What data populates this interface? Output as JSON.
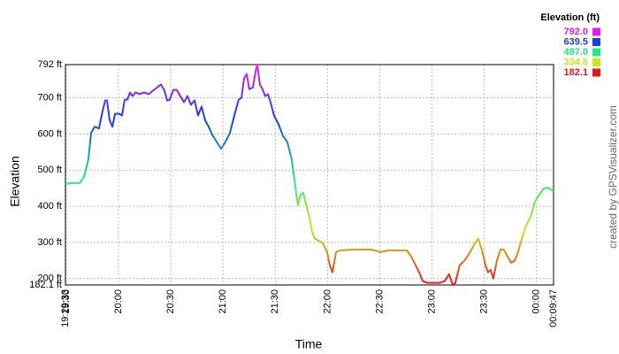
{
  "chart_data": {
    "type": "line",
    "x_label": "Time",
    "y_label": "Elevation",
    "credit": "created by GPSVisualizer.com",
    "legend_title": "Elevation (ft)",
    "color_scale": [
      {
        "value": 792.0,
        "label": "792.0",
        "color": "#e81ce8"
      },
      {
        "value": 639.5,
        "label": "639.5",
        "color": "#1c3ce8"
      },
      {
        "value": 487.0,
        "label": "487.0",
        "color": "#1ce884"
      },
      {
        "value": 334.6,
        "label": "334.6",
        "color": "#c8e81c"
      },
      {
        "value": 182.1,
        "label": "182.1",
        "color": "#e8141c"
      }
    ],
    "xlim": [
      29.55,
      309.78
    ],
    "xticks": [
      {
        "value": 29.55,
        "label": "19:29:33"
      },
      {
        "value": 30,
        "label": "19:30"
      },
      {
        "value": 60,
        "label": "20:00"
      },
      {
        "value": 90,
        "label": "20:30"
      },
      {
        "value": 120,
        "label": "21:00"
      },
      {
        "value": 150,
        "label": "21:30"
      },
      {
        "value": 180,
        "label": "22:00"
      },
      {
        "value": 210,
        "label": "22:30"
      },
      {
        "value": 240,
        "label": "23:00"
      },
      {
        "value": 270,
        "label": "23:30"
      },
      {
        "value": 300,
        "label": "00:00"
      },
      {
        "value": 309.78,
        "label": "00:09:47"
      }
    ],
    "ylim": [
      182.1,
      792
    ],
    "yticks": [
      {
        "value": 182.1,
        "label": "182.1 ft"
      },
      {
        "value": 200,
        "label": "200 ft"
      },
      {
        "value": 300,
        "label": "300 ft"
      },
      {
        "value": 400,
        "label": "400 ft"
      },
      {
        "value": 500,
        "label": "500 ft"
      },
      {
        "value": 600,
        "label": "600 ft"
      },
      {
        "value": 700,
        "label": "700 ft"
      },
      {
        "value": 792,
        "label": "792 ft"
      }
    ],
    "grid": true,
    "x": [
      29.55,
      32.6,
      37.7,
      40.2,
      42.7,
      44.3,
      46.3,
      48.8,
      50.9,
      52.4,
      53.4,
      54.9,
      56.5,
      58.0,
      60.5,
      62.0,
      63.6,
      65.1,
      66.6,
      68.1,
      69.7,
      72.2,
      74.7,
      77.3,
      79.8,
      82.3,
      84.4,
      86.4,
      87.9,
      89.4,
      91.5,
      93.5,
      95.5,
      97.6,
      99.6,
      101.6,
      103.7,
      105.7,
      107.7,
      109.8,
      111.8,
      113.8,
      116.4,
      118.9,
      121.4,
      124.0,
      126.5,
      129.0,
      130.6,
      132.1,
      133.6,
      135.1,
      137.2,
      138.7,
      139.7,
      141.2,
      142.7,
      144.2,
      145.8,
      147.3,
      149.3,
      151.9,
      154.4,
      156.9,
      159.5,
      161.5,
      163.0,
      164.6,
      166.1,
      167.6,
      169.6,
      171.2,
      172.7,
      174.7,
      177.3,
      179.8,
      181.3,
      182.8,
      184.9,
      187.4,
      195.0,
      205.2,
      210.3,
      215.3,
      225.5,
      228.0,
      230.6,
      233.1,
      234.6,
      237.2,
      240.7,
      244.3,
      247.3,
      249.8,
      251.9,
      253.4,
      255.9,
      258.5,
      261.0,
      262.5,
      264.6,
      266.6,
      268.6,
      270.7,
      272.2,
      273.7,
      275.2,
      277.2,
      279.3,
      281.3,
      283.3,
      285.4,
      287.4,
      289.4,
      291.5,
      294.0,
      296.6,
      299.1,
      301.6,
      304.2,
      306.7,
      309.78
    ],
    "values": [
      461,
      464,
      464,
      481,
      529,
      603,
      620,
      615,
      664,
      693,
      693,
      639,
      620,
      656,
      656,
      651,
      695,
      695,
      715,
      705,
      715,
      710,
      715,
      710,
      720,
      729,
      737,
      720,
      693,
      695,
      722,
      722,
      705,
      688,
      705,
      681,
      693,
      651,
      676,
      637,
      620,
      598,
      578,
      559,
      578,
      603,
      651,
      695,
      700,
      754,
      766,
      724,
      729,
      773,
      792,
      737,
      724,
      705,
      710,
      688,
      651,
      627,
      595,
      578,
      529,
      456,
      403,
      432,
      437,
      407,
      371,
      329,
      310,
      305,
      298,
      273,
      237,
      217,
      273,
      278,
      280,
      280,
      273,
      278,
      278,
      261,
      237,
      212,
      193,
      188,
      188,
      188,
      193,
      212,
      182.1,
      188,
      237,
      249,
      266,
      278,
      298,
      310,
      280,
      237,
      217,
      224,
      200,
      249,
      280,
      280,
      261,
      244,
      249,
      273,
      310,
      346,
      371,
      412,
      432,
      449,
      451,
      441
    ]
  }
}
